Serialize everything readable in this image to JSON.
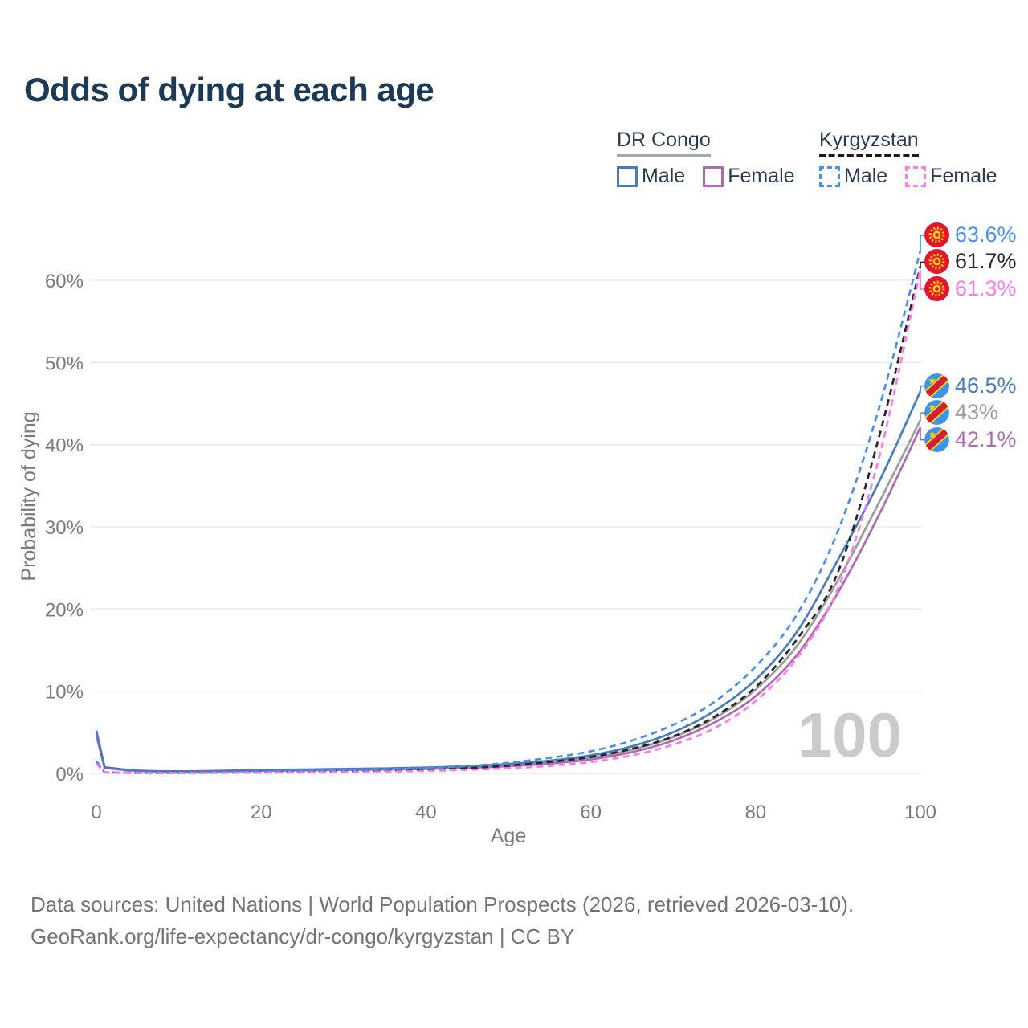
{
  "title": "Odds of dying at each age",
  "legend": {
    "groups": [
      {
        "label": "DR Congo",
        "underline_style": "solid",
        "underline_color": "#a8a8a8",
        "items": [
          {
            "label": "Male",
            "color": "#4a7bbd",
            "dashed": false
          },
          {
            "label": "Female",
            "color": "#ae6bb5",
            "dashed": false
          }
        ]
      },
      {
        "label": "Kyrgyzstan",
        "underline_style": "dashed",
        "underline_color": "#1a1a1a",
        "items": [
          {
            "label": "Male",
            "color": "#4a90e8",
            "dashed": true
          },
          {
            "label": "Female",
            "color": "#fb7de6",
            "dashed": true
          }
        ]
      }
    ]
  },
  "chart_data": {
    "type": "line",
    "title": "Odds of dying at each age",
    "xlabel": "Age",
    "ylabel": "Probability of dying",
    "xlim": [
      0,
      100
    ],
    "ylim": [
      0,
      65
    ],
    "xticks": [
      0,
      20,
      40,
      60,
      80,
      100
    ],
    "yticks": [
      0,
      10,
      20,
      30,
      40,
      50,
      60
    ],
    "ytick_suffix": "%",
    "grid": "horizontal",
    "legend_position": "top-right",
    "watermark": "100",
    "x": [
      0,
      1,
      5,
      10,
      15,
      20,
      25,
      30,
      35,
      40,
      45,
      50,
      55,
      60,
      65,
      70,
      75,
      80,
      85,
      90,
      95,
      100
    ],
    "series": [
      {
        "name": "DR Congo Both sexes",
        "country": "DR Congo",
        "sex": "Both",
        "color": "#9c9c9c",
        "dashed": false,
        "flag": "cd",
        "end_label": "43%",
        "values": [
          4.9,
          0.7,
          0.33,
          0.23,
          0.28,
          0.36,
          0.42,
          0.48,
          0.54,
          0.63,
          0.78,
          1.0,
          1.35,
          1.9,
          2.9,
          4.4,
          6.7,
          10.2,
          15.5,
          23.5,
          33.0,
          43.0
        ]
      },
      {
        "name": "DR Congo Female",
        "country": "DR Congo",
        "sex": "Female",
        "color": "#ae6bb5",
        "dashed": false,
        "flag": "cd",
        "end_label": "42.1%",
        "values": [
          4.6,
          0.65,
          0.3,
          0.21,
          0.24,
          0.3,
          0.36,
          0.42,
          0.47,
          0.55,
          0.68,
          0.88,
          1.2,
          1.7,
          2.6,
          4.0,
          6.2,
          9.4,
          14.4,
          22.0,
          31.5,
          42.1
        ]
      },
      {
        "name": "DR Congo Male",
        "country": "DR Congo",
        "sex": "Male",
        "color": "#4a7bbd",
        "dashed": false,
        "flag": "cd",
        "end_label": "46.5%",
        "values": [
          5.2,
          0.75,
          0.35,
          0.25,
          0.32,
          0.42,
          0.48,
          0.55,
          0.62,
          0.72,
          0.9,
          1.15,
          1.55,
          2.2,
          3.3,
          5.0,
          7.6,
          11.4,
          17.2,
          26.0,
          35.5,
          46.5
        ]
      },
      {
        "name": "Kyrgyzstan Both sexes",
        "country": "Kyrgyzstan",
        "sex": "Both",
        "color": "#262626",
        "dashed": true,
        "flag": "kg",
        "end_label": "61.7%",
        "values": [
          1.35,
          0.13,
          0.06,
          0.05,
          0.09,
          0.14,
          0.19,
          0.26,
          0.35,
          0.47,
          0.66,
          0.95,
          1.4,
          2.0,
          3.0,
          4.5,
          6.9,
          10.5,
          16.3,
          24.5,
          41.0,
          61.7
        ]
      },
      {
        "name": "Kyrgyzstan Male",
        "country": "Kyrgyzstan",
        "sex": "Male",
        "color": "#4a90e8",
        "dashed": true,
        "flag": "kg",
        "end_label": "63.6%",
        "values": [
          1.5,
          0.15,
          0.07,
          0.06,
          0.12,
          0.2,
          0.28,
          0.38,
          0.5,
          0.65,
          0.9,
          1.3,
          1.9,
          2.7,
          4.0,
          5.9,
          8.7,
          13.0,
          19.3,
          29.5,
          44.5,
          63.6
        ]
      },
      {
        "name": "Kyrgyzstan Female",
        "country": "Kyrgyzstan",
        "sex": "Female",
        "color": "#fb7de6",
        "dashed": true,
        "flag": "kg",
        "end_label": "61.3%",
        "values": [
          1.2,
          0.11,
          0.05,
          0.04,
          0.06,
          0.08,
          0.11,
          0.15,
          0.21,
          0.3,
          0.43,
          0.62,
          0.92,
          1.4,
          2.2,
          3.5,
          5.5,
          8.8,
          14.0,
          22.5,
          38.5,
          61.3
        ]
      }
    ]
  },
  "footer": {
    "line1": "Data sources: United Nations | World Population Prospects (2026, retrieved 2026-03-10).",
    "line2": "GeoRank.org/life-expectancy/dr-congo/kyrgyzstan | CC BY"
  }
}
